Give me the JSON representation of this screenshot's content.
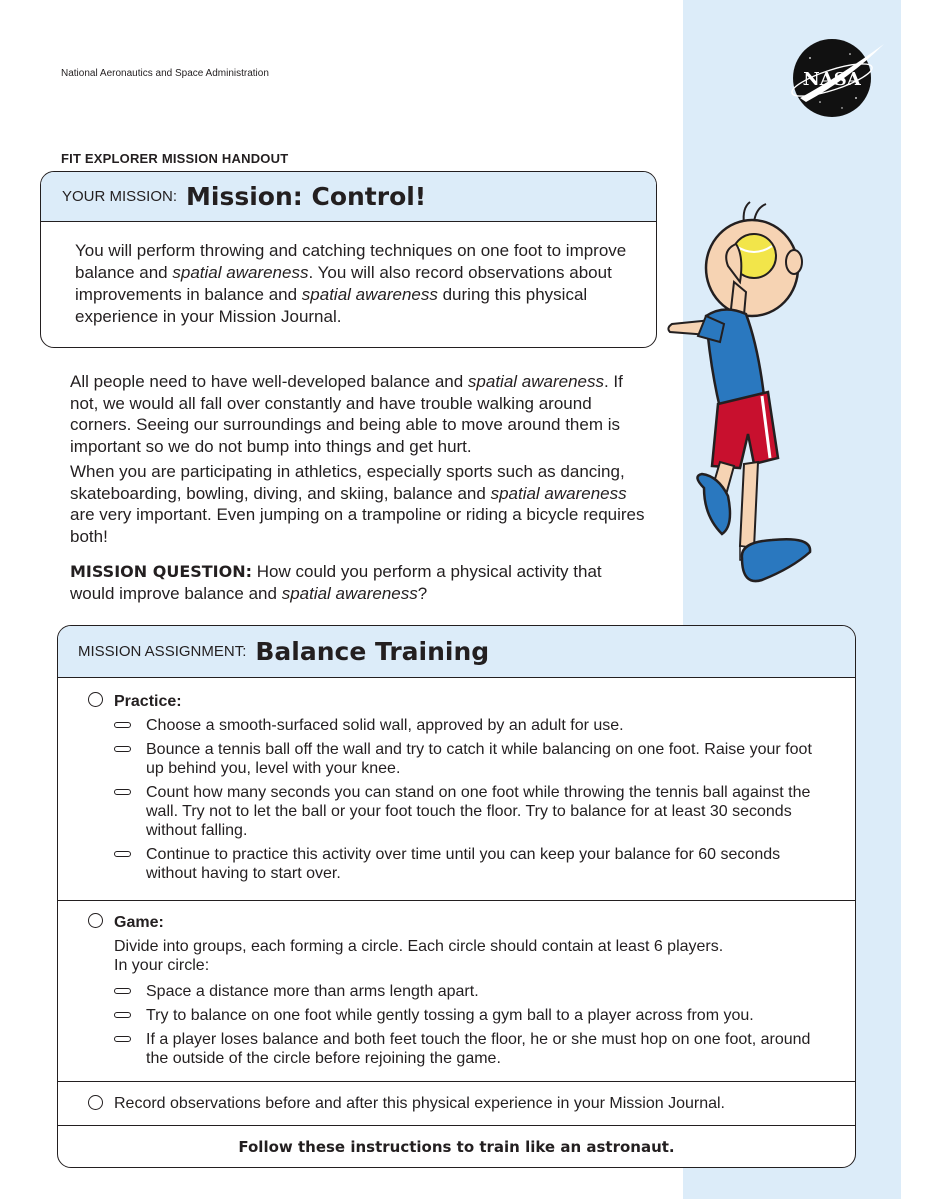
{
  "header": {
    "organization": "National Aeronautics and Space Administration",
    "logo_text": "NASA",
    "handout_title": "FIT EXPLORER MISSION HANDOUT"
  },
  "mission": {
    "label": "YOUR MISSION:",
    "title": "Mission: Control!",
    "body_parts": [
      "You will perform throwing and catching techniques on one foot to improve balance and ",
      "spatial awareness",
      ". You will also record observations about improvements in balance and ",
      "spatial awareness",
      " during this physical experience in your Mission Journal."
    ]
  },
  "intro": {
    "p1": [
      "All people need to have well-developed balance and ",
      "spatial awareness",
      ". If not, we would all fall over constantly and have trouble walking around corners. Seeing our surroundings and being able to move around them is important so we do not bump into things and get hurt."
    ],
    "p2": [
      "When you are participating in athletics, especially sports such as dancing, skateboarding, bowling, diving, and skiing, balance and ",
      "spatial awareness",
      " are very important. Even jumping on a trampoline or riding a bicycle requires both!"
    ],
    "question_label": "MISSION QUESTION:",
    "question": [
      " How could you perform a physical activity that would improve balance and ",
      "spatial awareness",
      "?"
    ]
  },
  "assignment": {
    "label": "MISSION ASSIGNMENT:",
    "title": "Balance Training",
    "practice": {
      "title": "Practice:",
      "items": [
        "Choose a smooth-surfaced solid wall, approved by an adult for use.",
        "Bounce a tennis ball off the wall and try to catch it while balancing on one foot. Raise your foot up behind you, level with your knee.",
        "Count how many seconds you can stand on one foot while throwing the tennis ball against the wall. Try not to let the ball or your foot touch the floor. Try to balance for at least 30 seconds without falling.",
        "Continue to practice this activity over time until you can keep your balance for 60 seconds without having to start over."
      ]
    },
    "game": {
      "title": "Game:",
      "description_line1": "Divide into groups, each forming a circle. Each circle should contain at least 6 players.",
      "description_line2": "In your circle:",
      "items": [
        "Space a distance more than arms length apart.",
        "Try to balance on one foot while gently tossing a gym ball to a player across from you.",
        "If a player loses balance and both feet touch the floor, he or she must hop on one foot, around the outside of the circle before rejoining the game."
      ]
    },
    "record": "Record observations before and after this physical experience in your Mission Journal.",
    "footer": "Follow these instructions to train like an astronaut."
  },
  "colors": {
    "accent_light_blue": "#dcecf9",
    "text": "#231f20",
    "nasa_red": "#d22630",
    "nasa_blue": "#0b3d91"
  },
  "icons": {
    "logo": "nasa-logo-icon",
    "illustration": "cartoon-kid-balancing-icon",
    "checkbox": "circle-checkbox-icon",
    "bullet": "dash-bullet-icon"
  }
}
